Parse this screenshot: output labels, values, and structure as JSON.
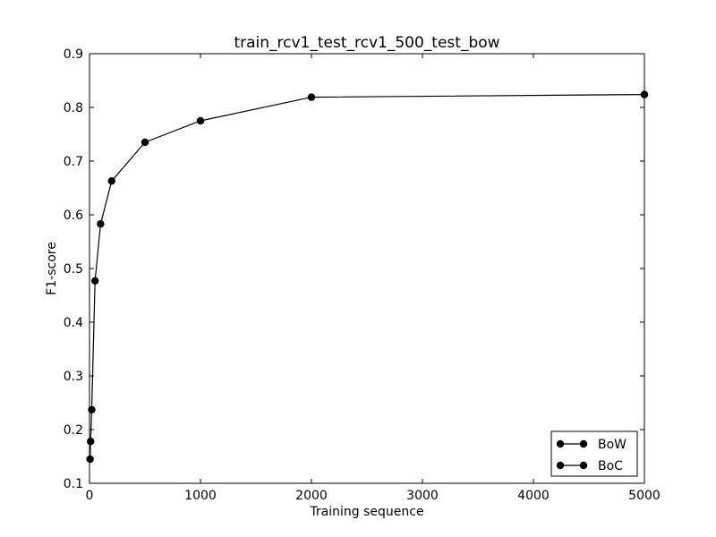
{
  "chart_data": {
    "type": "line",
    "title": "train_rcv1_test_rcv1_500_test_bow",
    "xlabel": "Training sequence",
    "ylabel": "F1-score",
    "xlim": [
      0,
      5000
    ],
    "ylim": [
      0.1,
      0.9
    ],
    "xticks": [
      0,
      1000,
      2000,
      3000,
      4000,
      5000
    ],
    "yticks": [
      0.1,
      0.2,
      0.3,
      0.4,
      0.5,
      0.6,
      0.7,
      0.8,
      0.9
    ],
    "xtick_labels": [
      "0",
      "1000",
      "2000",
      "3000",
      "4000",
      "5000"
    ],
    "ytick_labels": [
      "0.1",
      "0.2",
      "0.3",
      "0.4",
      "0.5",
      "0.6",
      "0.7",
      "0.8",
      "0.9"
    ],
    "grid": false,
    "legend_position": "bottom-right",
    "series": [
      {
        "name": "BoW",
        "color": "#000000",
        "x": [
          5,
          10,
          20,
          50,
          100,
          200,
          500,
          1000,
          2000,
          5000
        ],
        "y": [
          0.145,
          0.178,
          0.237,
          0.477,
          0.583,
          0.663,
          0.735,
          0.775,
          0.819,
          0.824
        ]
      },
      {
        "name": "BoC",
        "color": "#000000",
        "x": [],
        "y": []
      }
    ]
  }
}
